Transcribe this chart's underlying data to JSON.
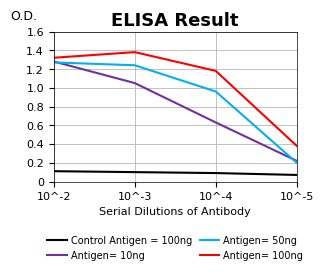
{
  "title": "ELISA Result",
  "od_label": "O.D.",
  "xlabel": "Serial Dilutions of Antibody",
  "ylim": [
    0,
    1.6
  ],
  "yticks": [
    0,
    0.2,
    0.4,
    0.6,
    0.8,
    1.0,
    1.2,
    1.4,
    1.6
  ],
  "x_values": [
    -2,
    -3,
    -4,
    -5
  ],
  "x_labels": [
    "10^-2",
    "10^-3",
    "10^-4",
    "10^-5"
  ],
  "lines": [
    {
      "label": "Control Antigen = 100ng",
      "color": "#000000",
      "y": [
        0.11,
        0.1,
        0.09,
        0.07
      ]
    },
    {
      "label": "Antigen= 10ng",
      "color": "#7030A0",
      "y": [
        1.28,
        1.05,
        0.63,
        0.22
      ]
    },
    {
      "label": "Antigen= 50ng",
      "color": "#00B0F0",
      "y": [
        1.27,
        1.24,
        0.96,
        0.2
      ]
    },
    {
      "label": "Antigen= 100ng",
      "color": "#FF0000",
      "y": [
        1.32,
        1.38,
        1.18,
        0.38
      ]
    }
  ],
  "background_color": "#ffffff",
  "grid_color": "#aaaaaa",
  "title_fontsize": 13,
  "legend_fontsize": 7,
  "tick_fontsize": 8
}
